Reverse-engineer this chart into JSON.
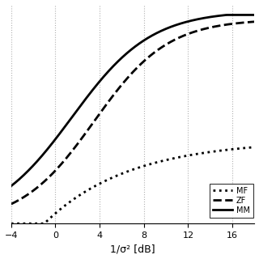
{
  "xlabel": "1/σ² [dB]",
  "xlim": [
    -4,
    18
  ],
  "ylim": [
    0,
    1.05
  ],
  "xticks": [
    -4,
    0,
    4,
    8,
    12,
    16
  ],
  "grid_color": "#b0b0b0",
  "background_color": "#ffffff",
  "legend_labels": [
    "MF",
    "ZF",
    "MM"
  ],
  "legend_linestyles": [
    "dotted",
    "dashed",
    "solid"
  ],
  "line_color": "#000000",
  "line_width": 2.0,
  "mf_params": {
    "a": 0.4,
    "b": 0.13,
    "c": -1.0
  },
  "zf_params": {
    "scale": 0.98,
    "rate": 0.3,
    "shift": 3.5
  },
  "mmse_params": {
    "scale": 1.02,
    "rate": 0.28,
    "shift": 1.5
  }
}
